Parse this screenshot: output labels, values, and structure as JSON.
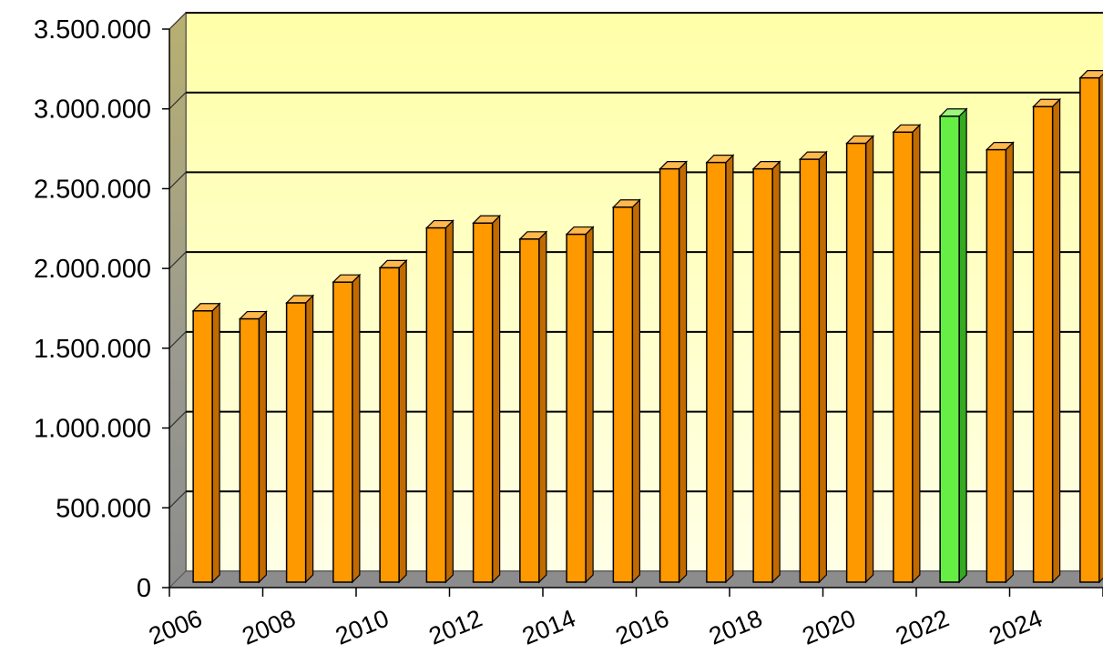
{
  "chart_data": {
    "type": "bar",
    "title": "",
    "xlabel": "",
    "ylabel": "",
    "categories": [
      "2006",
      "2007",
      "2008",
      "2009",
      "2010",
      "2011",
      "2012",
      "2013",
      "2014",
      "2015",
      "2016",
      "2017",
      "2018",
      "2019",
      "2020",
      "2021",
      "2022",
      "2023",
      "2024",
      "2025"
    ],
    "x_tick_labels": [
      "2006",
      "2008",
      "2010",
      "2012",
      "2014",
      "2016",
      "2018",
      "2020",
      "2022",
      "2024"
    ],
    "y_tick_labels": [
      "0",
      "500.000",
      "1.000.000",
      "1.500.000",
      "2.000.000",
      "2.500.000",
      "3.000.000",
      "3.500.000"
    ],
    "ylim": [
      0,
      3500000
    ],
    "grid": true,
    "legend": "none",
    "series": [
      {
        "values": [
          1700000,
          1650000,
          1750000,
          1880000,
          1970000,
          2220000,
          2250000,
          2150000,
          2180000,
          2350000,
          2590000,
          2630000,
          2590000,
          2650000,
          2750000,
          2820000,
          2920000,
          2710000,
          2980000,
          3160000
        ]
      }
    ],
    "highlight": {
      "category": "2022",
      "color": "#66ee44"
    },
    "colors": {
      "bar_front": "#ff9900",
      "bar_side": "#c06a00",
      "bar_top": "#ffb84d",
      "highlight_front": "#66ee44",
      "highlight_side": "#33aa22",
      "highlight_top": "#9cf57f",
      "wall_top": "#ffffa8",
      "wall_bottom": "#ffffe6",
      "floor": "#8c8c8c",
      "side_wall": "#a8a070",
      "grid": "#000000"
    }
  }
}
